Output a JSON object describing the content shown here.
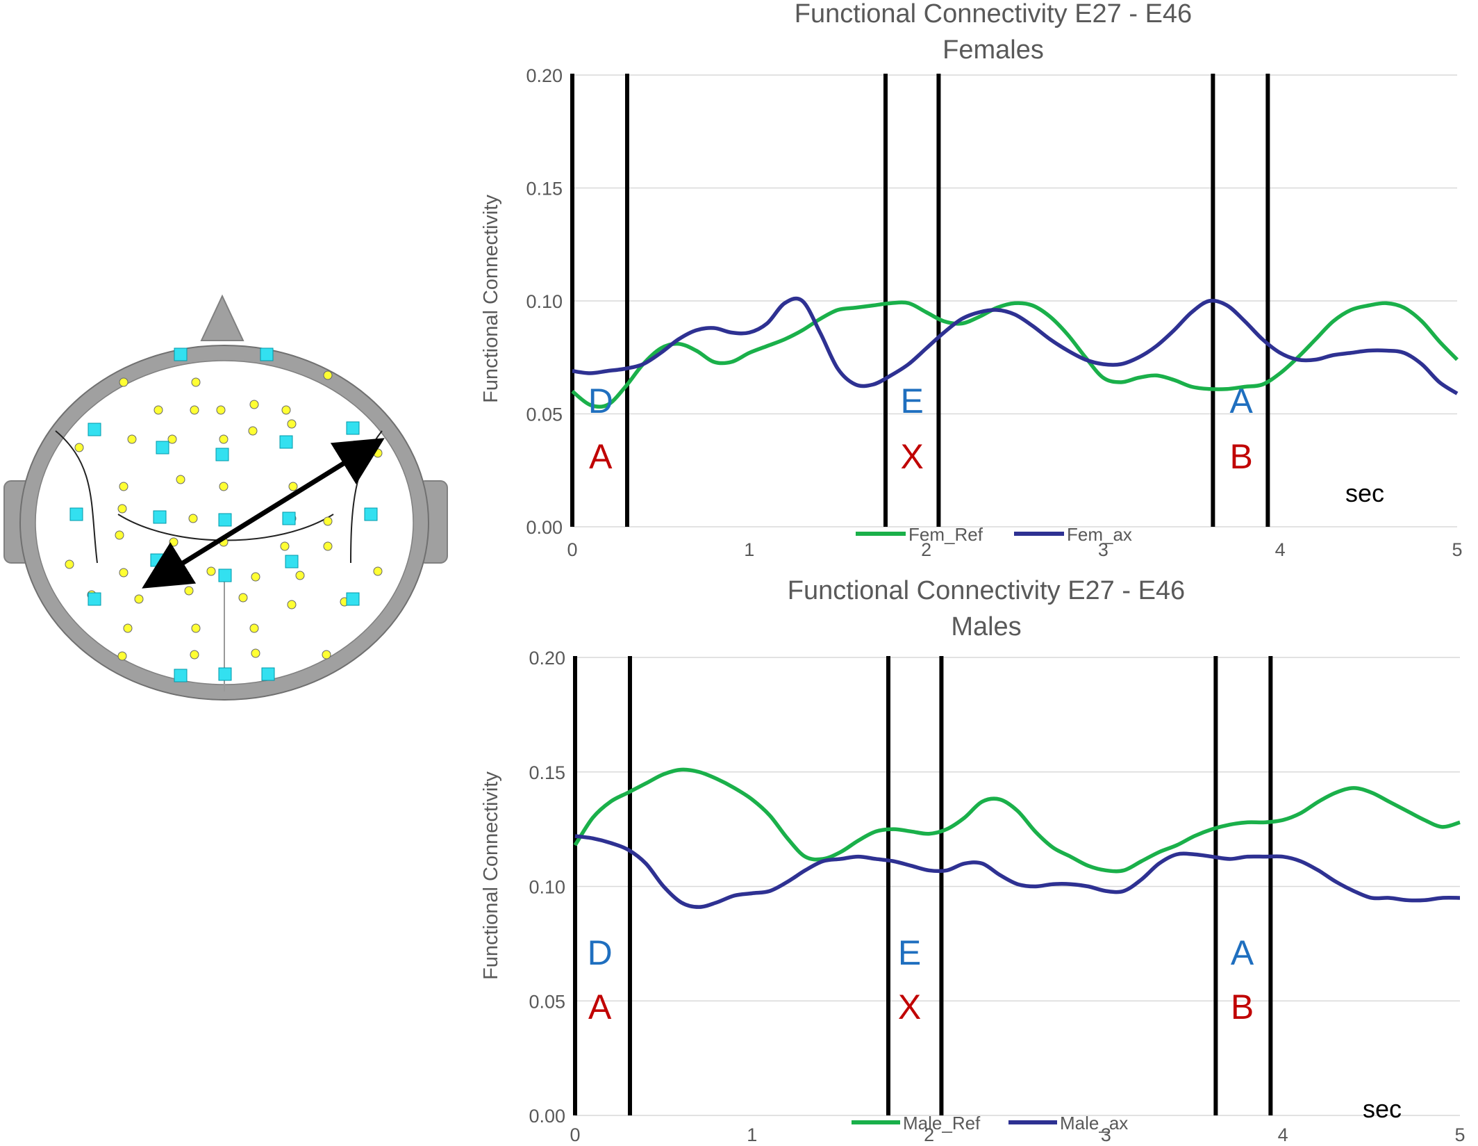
{
  "chart_data": [
    {
      "type": "line",
      "title": "Functional Connectivity E27 - E46",
      "subtitle": "Females",
      "xlabel": "",
      "ylabel": "Functional Connectivity",
      "unit_label": "sec",
      "xlim": [
        0,
        5
      ],
      "ylim": [
        0,
        0.2
      ],
      "y_ticks": [
        "0.00",
        "0.05",
        "0.10",
        "0.15",
        "0.20"
      ],
      "x_ticks": [
        "0",
        "1",
        "2",
        "3",
        "4",
        "5"
      ],
      "grid": true,
      "legend_position": "bottom",
      "colors": {
        "ref": "#1ab04a",
        "ax": "#2e3192",
        "blue_letter": "#1f6fbf",
        "red_letter": "#c00000"
      },
      "event_lines": [
        0.0,
        0.31,
        1.77,
        2.07,
        3.62,
        3.93
      ],
      "phase_labels": [
        {
          "x": 0.16,
          "top": "D",
          "bottom": "A"
        },
        {
          "x": 1.92,
          "top": "E",
          "bottom": "X"
        },
        {
          "x": 3.78,
          "top": "A",
          "bottom": "B"
        }
      ],
      "series": [
        {
          "name": "Fem_Ref",
          "color": "#1ab04a",
          "x": [
            0,
            0.1,
            0.2,
            0.3,
            0.4,
            0.5,
            0.6,
            0.7,
            0.8,
            0.9,
            1.0,
            1.1,
            1.2,
            1.3,
            1.4,
            1.5,
            1.6,
            1.7,
            1.8,
            1.9,
            2.0,
            2.1,
            2.2,
            2.3,
            2.4,
            2.5,
            2.6,
            2.7,
            2.8,
            2.9,
            3.0,
            3.1,
            3.2,
            3.3,
            3.4,
            3.5,
            3.6,
            3.7,
            3.8,
            3.9,
            4.0,
            4.1,
            4.2,
            4.3,
            4.4,
            4.5,
            4.6,
            4.7,
            4.8,
            4.9,
            5.0
          ],
          "y": [
            0.06,
            0.054,
            0.054,
            0.062,
            0.072,
            0.079,
            0.081,
            0.078,
            0.073,
            0.073,
            0.077,
            0.08,
            0.083,
            0.087,
            0.092,
            0.096,
            0.097,
            0.098,
            0.099,
            0.099,
            0.095,
            0.091,
            0.09,
            0.093,
            0.097,
            0.099,
            0.098,
            0.093,
            0.085,
            0.075,
            0.066,
            0.064,
            0.066,
            0.067,
            0.065,
            0.062,
            0.061,
            0.061,
            0.062,
            0.063,
            0.068,
            0.075,
            0.083,
            0.091,
            0.096,
            0.098,
            0.099,
            0.097,
            0.091,
            0.082,
            0.074
          ]
        },
        {
          "name": "Fem_ax",
          "color": "#2e3192",
          "x": [
            0,
            0.1,
            0.2,
            0.3,
            0.4,
            0.5,
            0.6,
            0.7,
            0.8,
            0.9,
            1.0,
            1.1,
            1.2,
            1.3,
            1.4,
            1.5,
            1.6,
            1.7,
            1.8,
            1.9,
            2.0,
            2.1,
            2.2,
            2.3,
            2.4,
            2.5,
            2.6,
            2.7,
            2.8,
            2.9,
            3.0,
            3.1,
            3.2,
            3.3,
            3.4,
            3.5,
            3.6,
            3.7,
            3.8,
            3.9,
            4.0,
            4.1,
            4.2,
            4.3,
            4.4,
            4.5,
            4.6,
            4.7,
            4.8,
            4.9,
            5.0
          ],
          "y": [
            0.069,
            0.068,
            0.069,
            0.07,
            0.072,
            0.077,
            0.083,
            0.087,
            0.088,
            0.086,
            0.086,
            0.09,
            0.099,
            0.1,
            0.086,
            0.07,
            0.063,
            0.063,
            0.067,
            0.072,
            0.079,
            0.086,
            0.092,
            0.095,
            0.096,
            0.094,
            0.089,
            0.083,
            0.078,
            0.074,
            0.072,
            0.072,
            0.075,
            0.08,
            0.087,
            0.095,
            0.1,
            0.098,
            0.091,
            0.083,
            0.077,
            0.074,
            0.074,
            0.076,
            0.077,
            0.078,
            0.078,
            0.077,
            0.072,
            0.064,
            0.059
          ]
        }
      ]
    },
    {
      "type": "line",
      "title": "Functional Connectivity E27 - E46",
      "subtitle": "Males",
      "xlabel": "",
      "ylabel": "Functional Connectivity",
      "unit_label": "sec",
      "xlim": [
        0,
        5
      ],
      "ylim": [
        0,
        0.2
      ],
      "y_ticks": [
        "0.00",
        "0.05",
        "0.10",
        "0.15",
        "0.20"
      ],
      "x_ticks": [
        "0",
        "1",
        "2",
        "3",
        "4",
        "5"
      ],
      "grid": true,
      "legend_position": "bottom",
      "colors": {
        "ref": "#1ab04a",
        "ax": "#2e3192",
        "blue_letter": "#1f6fbf",
        "red_letter": "#c00000"
      },
      "event_lines": [
        0.0,
        0.31,
        1.77,
        2.07,
        3.62,
        3.93
      ],
      "phase_labels": [
        {
          "x": 0.14,
          "top": "D",
          "bottom": "A"
        },
        {
          "x": 1.89,
          "top": "E",
          "bottom": "X"
        },
        {
          "x": 3.77,
          "top": "A",
          "bottom": "B"
        }
      ],
      "series": [
        {
          "name": "Male_Ref",
          "color": "#1ab04a",
          "x": [
            0,
            0.1,
            0.2,
            0.3,
            0.4,
            0.5,
            0.6,
            0.7,
            0.8,
            0.9,
            1.0,
            1.1,
            1.2,
            1.3,
            1.4,
            1.5,
            1.6,
            1.7,
            1.8,
            1.9,
            2.0,
            2.1,
            2.2,
            2.3,
            2.4,
            2.5,
            2.6,
            2.7,
            2.8,
            2.9,
            3.0,
            3.1,
            3.2,
            3.3,
            3.4,
            3.5,
            3.6,
            3.7,
            3.8,
            3.9,
            4.0,
            4.1,
            4.2,
            4.3,
            4.4,
            4.5,
            4.6,
            4.7,
            4.8,
            4.9,
            5.0
          ],
          "y": [
            0.118,
            0.13,
            0.137,
            0.141,
            0.145,
            0.149,
            0.151,
            0.15,
            0.147,
            0.143,
            0.138,
            0.131,
            0.121,
            0.113,
            0.112,
            0.115,
            0.12,
            0.124,
            0.125,
            0.124,
            0.123,
            0.125,
            0.13,
            0.137,
            0.138,
            0.133,
            0.124,
            0.117,
            0.113,
            0.109,
            0.107,
            0.107,
            0.111,
            0.115,
            0.118,
            0.122,
            0.125,
            0.127,
            0.128,
            0.128,
            0.129,
            0.132,
            0.137,
            0.141,
            0.143,
            0.141,
            0.137,
            0.133,
            0.129,
            0.126,
            0.128
          ]
        },
        {
          "name": "Male_ax",
          "color": "#2e3192",
          "x": [
            0,
            0.1,
            0.2,
            0.3,
            0.4,
            0.5,
            0.6,
            0.7,
            0.8,
            0.9,
            1.0,
            1.1,
            1.2,
            1.3,
            1.4,
            1.5,
            1.6,
            1.7,
            1.8,
            1.9,
            2.0,
            2.1,
            2.2,
            2.3,
            2.4,
            2.5,
            2.6,
            2.7,
            2.8,
            2.9,
            3.0,
            3.1,
            3.2,
            3.3,
            3.4,
            3.5,
            3.6,
            3.7,
            3.8,
            3.9,
            4.0,
            4.1,
            4.2,
            4.3,
            4.4,
            4.5,
            4.6,
            4.7,
            4.8,
            4.9,
            5.0
          ],
          "y": [
            0.122,
            0.121,
            0.119,
            0.116,
            0.11,
            0.1,
            0.093,
            0.091,
            0.093,
            0.096,
            0.097,
            0.098,
            0.102,
            0.107,
            0.111,
            0.112,
            0.113,
            0.112,
            0.111,
            0.109,
            0.107,
            0.107,
            0.11,
            0.11,
            0.105,
            0.101,
            0.1,
            0.101,
            0.101,
            0.1,
            0.098,
            0.098,
            0.103,
            0.11,
            0.114,
            0.114,
            0.113,
            0.112,
            0.113,
            0.113,
            0.113,
            0.111,
            0.107,
            0.102,
            0.098,
            0.095,
            0.095,
            0.094,
            0.094,
            0.095,
            0.095
          ]
        }
      ]
    }
  ]
}
